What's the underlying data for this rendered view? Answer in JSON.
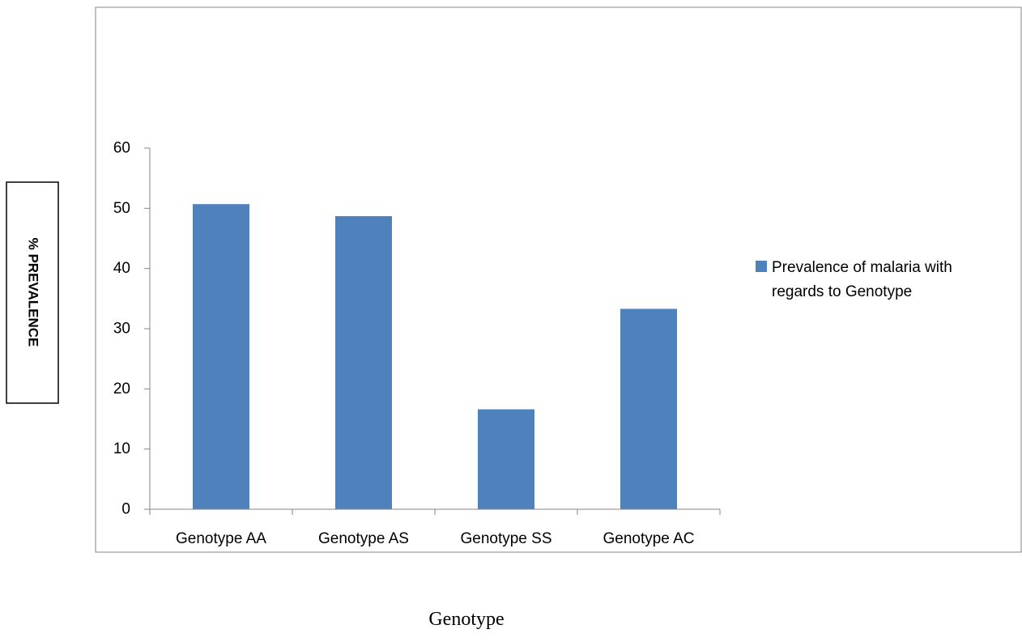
{
  "colors": {
    "bar": "#4f81bd",
    "axis": "#868686",
    "frame": "#868686",
    "text": "#000000"
  },
  "chart_data": {
    "type": "bar",
    "title": "",
    "xlabel": "Genotype",
    "ylabel": "% PREVALENCE",
    "categories": [
      "Genotype AA",
      "Genotype AS",
      "Genotype SS",
      "Genotype AC"
    ],
    "series": [
      {
        "name": "Prevalence of malaria with regards to Genotype",
        "values": [
          50.7,
          48.7,
          16.6,
          33.3
        ]
      }
    ],
    "yticks": [
      "0",
      "10",
      "20",
      "30",
      "40",
      "50",
      "60"
    ],
    "ylim": [
      0,
      60
    ],
    "grid": false,
    "legend": {
      "position": "right",
      "label_lines": [
        "Prevalence of malaria with",
        "regards to Genotype"
      ]
    }
  }
}
